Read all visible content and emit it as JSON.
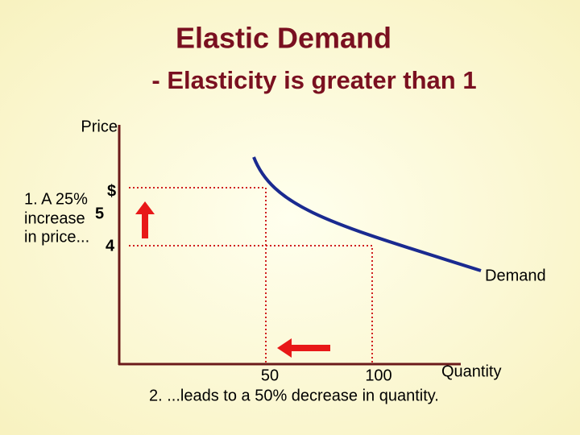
{
  "header": {
    "title": "Elastic Demand",
    "subtitle": "- Elasticity is greater than 1"
  },
  "axes": {
    "y_label": "Price",
    "x_label": "Quantity"
  },
  "price_labels": [
    "$",
    "5",
    "4"
  ],
  "quantity_labels": [
    "50",
    "100"
  ],
  "curve_label": "Demand",
  "notes": [
    [
      "1. A 25%",
      "increase",
      "in price..."
    ],
    "2. ...leads to a 50% decrease in quantity."
  ]
}
